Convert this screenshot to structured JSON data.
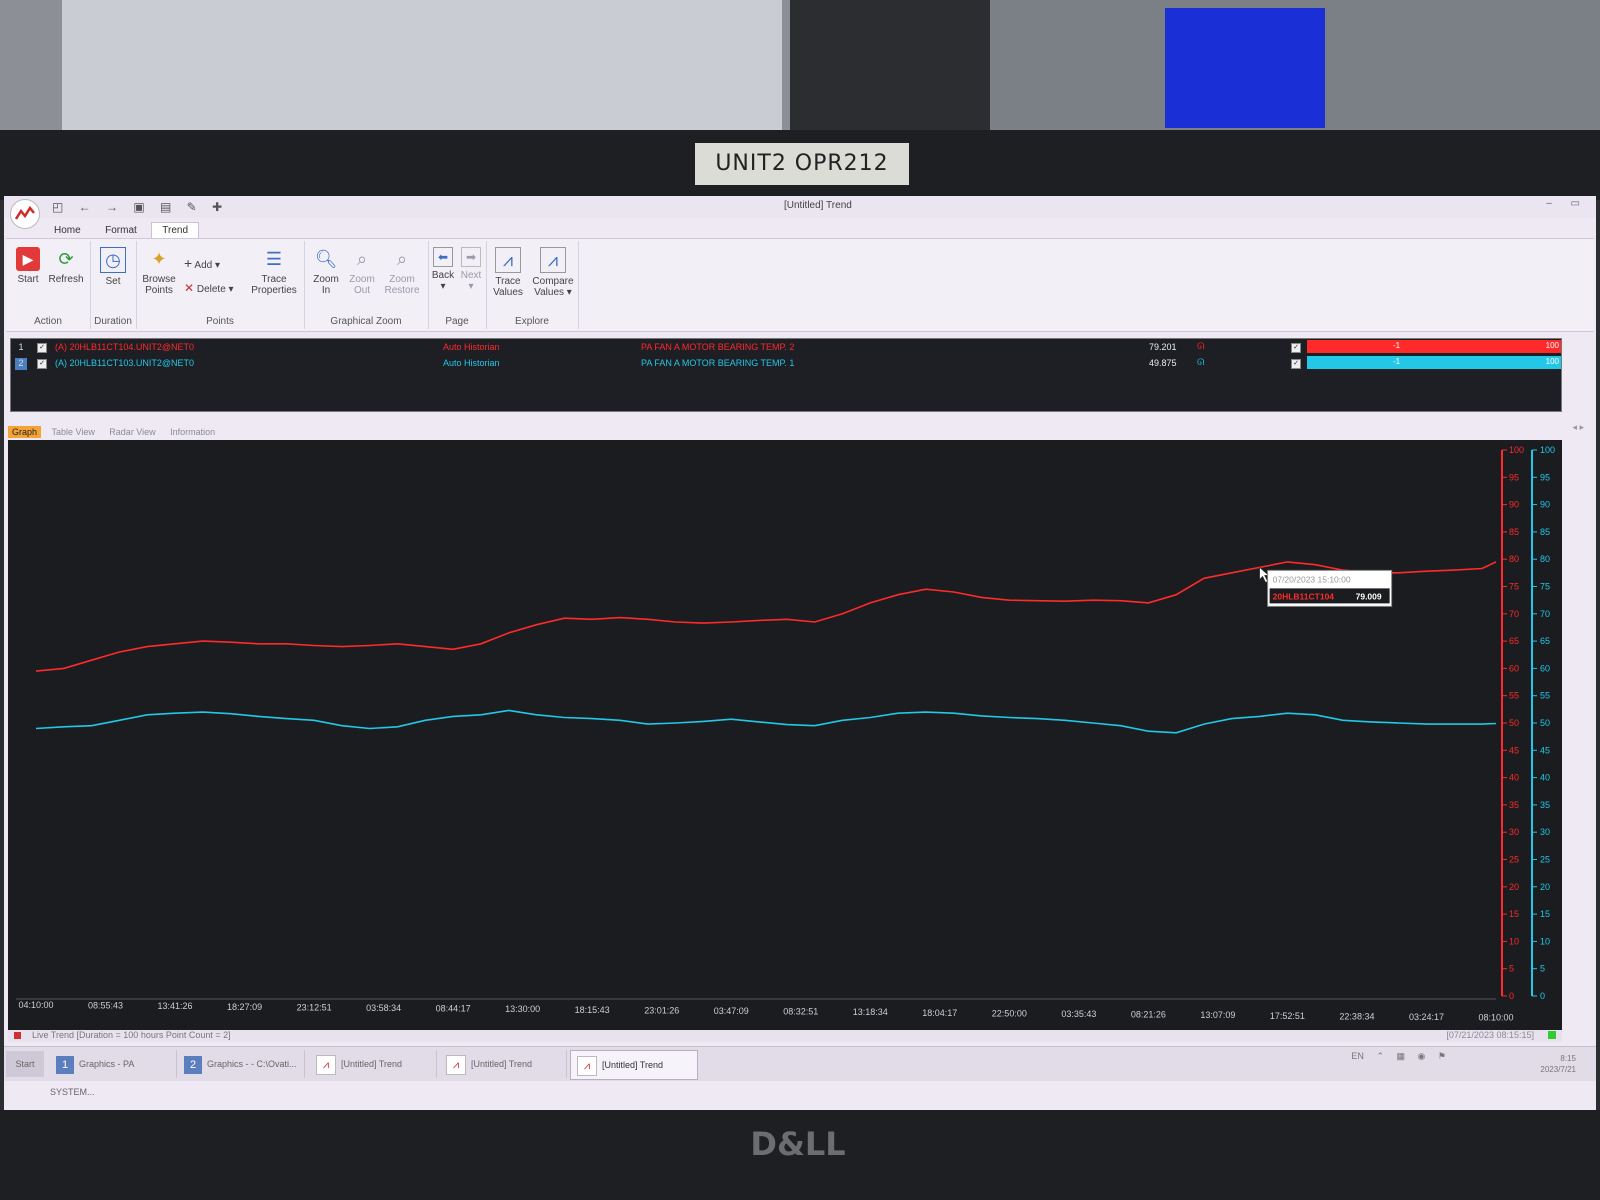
{
  "monitor_label": "UNIT2 OPR212",
  "brand": "D&LL",
  "window": {
    "title": "[Untitled] Trend"
  },
  "ribbon": {
    "tabs": [
      "Home",
      "Format",
      "Trend"
    ],
    "active_tab": "Trend",
    "groups": {
      "action": {
        "label": "Action",
        "start": "Start",
        "refresh": "Refresh"
      },
      "duration": {
        "label": "Duration",
        "set": "Set"
      },
      "points": {
        "label": "Points",
        "browse_line1": "Browse",
        "browse_line2": "Points",
        "add": "Add",
        "delete": "Delete",
        "trace_props_line1": "Trace",
        "trace_props_line2": "Properties"
      },
      "graphical_zoom": {
        "label": "Graphical Zoom",
        "zoom_in_line1": "Zoom",
        "zoom_in_line2": "In",
        "zoom_out_line1": "Zoom",
        "zoom_out_line2": "Out",
        "zoom_restore_line1": "Zoom",
        "zoom_restore_line2": "Restore"
      },
      "page": {
        "label": "Page",
        "back": "Back",
        "next": "Next"
      },
      "explore": {
        "label": "Explore",
        "trace_values_line1": "Trace",
        "trace_values_line2": "Values",
        "compare_values_line1": "Compare",
        "compare_values_line2": "Values"
      }
    }
  },
  "traces": [
    {
      "num": "1",
      "tag": "(A) 20HLB11CT104.UNIT2@NET0",
      "source": "Auto Historian",
      "description": "PA FAN A MOTOR BEARING TEMP. 2",
      "value": "79.201",
      "range_low": "-1",
      "range_high": "100",
      "color": "#ff2a2a"
    },
    {
      "num": "2",
      "tag": "(A) 20HLB11CT103.UNIT2@NET0",
      "source": "Auto Historian",
      "description": "PA FAN A MOTOR BEARING TEMP. 1",
      "value": "49.875",
      "range_low": "-1",
      "range_high": "100",
      "color": "#22c8e6"
    }
  ],
  "view_tabs": [
    "Graph",
    "Table View",
    "Radar View",
    "Information"
  ],
  "active_view": "Graph",
  "tooltip": {
    "timestamp": "07/20/2023 15:10:00",
    "tag": "20HLB11CT104",
    "value": "79.009"
  },
  "status": {
    "text": "Live Trend [Duration = 100 hours  Point Count = 2]",
    "timestamp": "[07/21/2023 08:15:15]"
  },
  "taskbar": {
    "start": "Start",
    "items": [
      {
        "label": "Graphics - PA SYSTEM...",
        "badge": "1"
      },
      {
        "label": "Graphics - - C:\\Ovati...",
        "badge": "2"
      },
      {
        "label": "[Untitled] Trend",
        "badge": ""
      },
      {
        "label": "[Untitled] Trend",
        "badge": ""
      },
      {
        "label": "[Untitled] Trend",
        "badge": ""
      }
    ],
    "lang": "EN",
    "clock_time": "8:15",
    "clock_date": "2023/7/21"
  },
  "chart_data": {
    "type": "line",
    "x_ticks": [
      "04:10:00",
      "08:55:43",
      "13:41:26",
      "18:27:09",
      "23:12:51",
      "03:58:34",
      "08:44:17",
      "13:30:00",
      "18:15:43",
      "23:01:26",
      "03:47:09",
      "08:32:51",
      "13:18:34",
      "18:04:17",
      "22:50:00",
      "03:35:43",
      "08:21:26",
      "13:07:09",
      "17:52:51",
      "22:38:34",
      "03:24:17",
      "08:10:00"
    ],
    "y_ticks": [
      0,
      5,
      10,
      15,
      20,
      25,
      30,
      35,
      40,
      45,
      50,
      55,
      60,
      65,
      70,
      75,
      80,
      85,
      90,
      95,
      100
    ],
    "ylim": [
      0,
      100
    ],
    "x_index_range": [
      0,
      21
    ],
    "series": [
      {
        "name": "20HLB11CT104",
        "color": "#ff2a2a",
        "x": [
          0,
          0.4,
          0.8,
          1.2,
          1.6,
          2.0,
          2.4,
          2.8,
          3.2,
          3.6,
          4.0,
          4.4,
          4.8,
          5.2,
          5.6,
          6.0,
          6.4,
          6.8,
          7.2,
          7.6,
          8.0,
          8.4,
          8.8,
          9.2,
          9.6,
          10.0,
          10.4,
          10.8,
          11.2,
          11.6,
          12.0,
          12.4,
          12.8,
          13.2,
          13.6,
          14.0,
          14.4,
          14.8,
          15.2,
          15.6,
          16.0,
          16.4,
          16.8,
          17.2,
          17.6,
          18.0,
          18.4,
          18.8,
          19.2,
          19.6,
          20.0,
          20.4,
          20.8,
          21.0
        ],
        "values": [
          59.5,
          60,
          61.5,
          63,
          64,
          64.5,
          65,
          64.8,
          64.5,
          64.5,
          64.2,
          64,
          64.2,
          64.5,
          64,
          63.5,
          64.5,
          66.5,
          68,
          69.2,
          69,
          69.3,
          69,
          68.5,
          68.3,
          68.5,
          68.8,
          69,
          68.5,
          70,
          72,
          73.5,
          74.5,
          74,
          73,
          72.5,
          72.4,
          72.3,
          72.5,
          72.4,
          72,
          73.5,
          76.5,
          77.5,
          78.5,
          79.5,
          79,
          78,
          77.5,
          77.5,
          77.8,
          78,
          78.3,
          79.5
        ]
      },
      {
        "name": "20HLB11CT103",
        "color": "#22c8e6",
        "x": [
          0,
          0.4,
          0.8,
          1.2,
          1.6,
          2.0,
          2.4,
          2.8,
          3.2,
          3.6,
          4.0,
          4.4,
          4.8,
          5.2,
          5.6,
          6.0,
          6.4,
          6.8,
          7.2,
          7.6,
          8.0,
          8.4,
          8.8,
          9.2,
          9.6,
          10.0,
          10.4,
          10.8,
          11.2,
          11.6,
          12.0,
          12.4,
          12.8,
          13.2,
          13.6,
          14.0,
          14.4,
          14.8,
          15.2,
          15.6,
          16.0,
          16.4,
          16.8,
          17.2,
          17.6,
          18.0,
          18.4,
          18.8,
          19.2,
          19.6,
          20.0,
          20.4,
          20.8,
          21.0
        ],
        "values": [
          49,
          49.3,
          49.5,
          50.5,
          51.5,
          51.8,
          52,
          51.7,
          51.2,
          50.8,
          50.5,
          49.5,
          49,
          49.3,
          50.5,
          51.2,
          51.5,
          52.3,
          51.5,
          51,
          50.8,
          50.5,
          49.8,
          50,
          50.3,
          50.7,
          50.2,
          49.7,
          49.5,
          50.5,
          51,
          51.8,
          52,
          51.8,
          51.3,
          51,
          50.8,
          50.5,
          50,
          49.5,
          48.5,
          48.2,
          49.8,
          50.8,
          51.2,
          51.8,
          51.5,
          50.5,
          50.2,
          50,
          49.8,
          49.8,
          49.8,
          49.9
        ]
      }
    ]
  }
}
